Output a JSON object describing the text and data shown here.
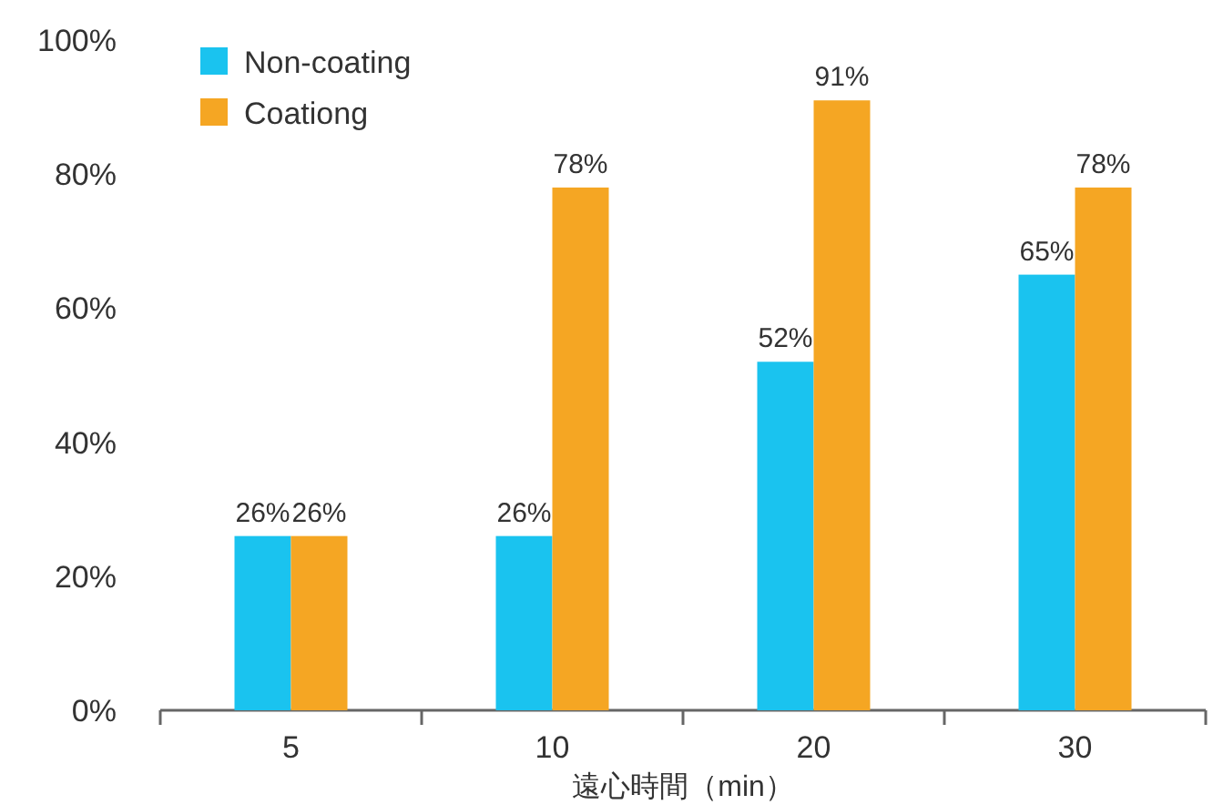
{
  "chart_data": {
    "type": "bar",
    "xlabel": "遠心時間（min）",
    "categories": [
      "5",
      "10",
      "20",
      "30"
    ],
    "series": [
      {
        "name": "Non-coating",
        "color": "#1ac3ef",
        "values": [
          26,
          26,
          52,
          65
        ],
        "value_labels": [
          "26%",
          "26%",
          "52%",
          "65%"
        ]
      },
      {
        "name": "Coationg",
        "color": "#f5a623",
        "values": [
          26,
          78,
          91,
          78
        ],
        "value_labels": [
          "26%",
          "78%",
          "91%",
          "78%"
        ]
      }
    ],
    "ylim": [
      0,
      100
    ],
    "yticks": [
      {
        "value": 0,
        "label": "0%"
      },
      {
        "value": 20,
        "label": "20%"
      },
      {
        "value": 40,
        "label": "40%"
      },
      {
        "value": 60,
        "label": "60%"
      },
      {
        "value": 80,
        "label": "80%"
      },
      {
        "value": 100,
        "label": "100%"
      }
    ],
    "grid": false,
    "legend": "top left"
  }
}
